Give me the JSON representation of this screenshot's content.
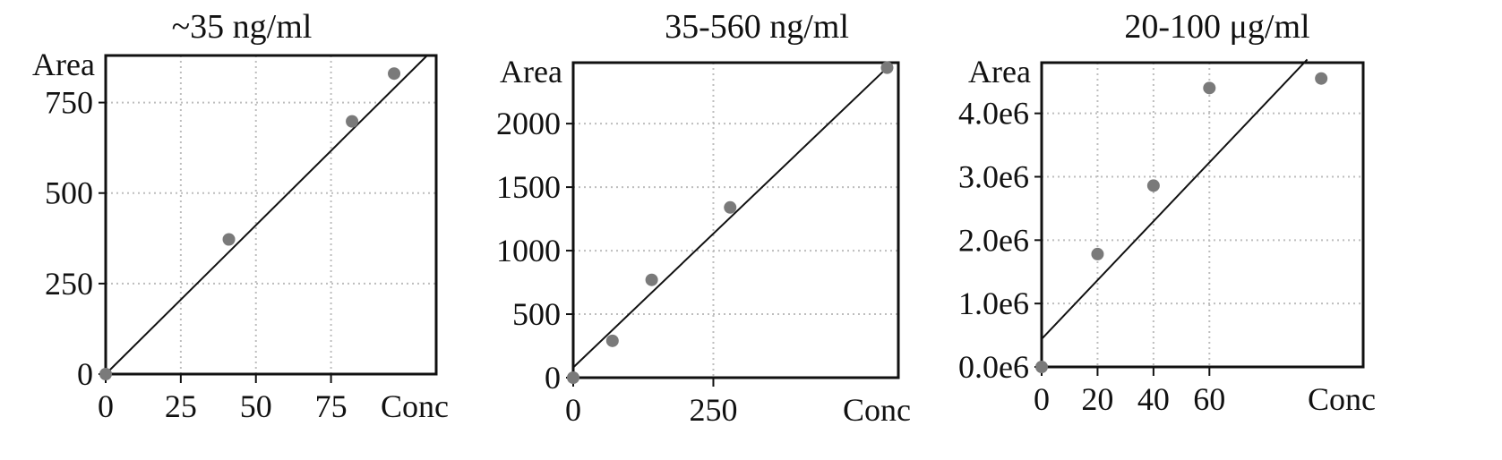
{
  "chart_data": [
    {
      "type": "scatter",
      "title": "~35 ng/ml",
      "xlabel": "Conc",
      "ylabel": "Area",
      "xlim": [
        0,
        110
      ],
      "ylim": [
        0,
        880
      ],
      "xticks": [
        0,
        25,
        50,
        75
      ],
      "yticks": [
        0,
        250,
        500,
        750
      ],
      "xtick_labels": [
        "0",
        "25",
        "50",
        "75"
      ],
      "ytick_labels": [
        "0",
        "250",
        "500",
        "750"
      ],
      "grid": true,
      "legend": "none",
      "points": [
        [
          0,
          0
        ],
        [
          41,
          372
        ],
        [
          82,
          698
        ],
        [
          96,
          830
        ]
      ],
      "fit_line": [
        [
          0,
          0
        ],
        [
          107,
          880
        ]
      ],
      "colors": {
        "points": "#7a7a7a",
        "line": "#111111",
        "grid": "#bdbdbd"
      }
    },
    {
      "type": "scatter",
      "title": "35-560 ng/ml",
      "xlabel": "Conc",
      "ylabel": "Area",
      "xlim": [
        0,
        580
      ],
      "ylim": [
        0,
        2480
      ],
      "xticks": [
        0,
        250
      ],
      "yticks": [
        0,
        500,
        1000,
        1500,
        2000
      ],
      "xtick_labels": [
        "0",
        "250"
      ],
      "ytick_labels": [
        "0",
        "500",
        "1000",
        "1500",
        "2000"
      ],
      "grid": true,
      "legend": "none",
      "points": [
        [
          0,
          0
        ],
        [
          70,
          290
        ],
        [
          140,
          770
        ],
        [
          280,
          1340
        ],
        [
          560,
          2440
        ]
      ],
      "fit_line": [
        [
          0,
          80
        ],
        [
          560,
          2440
        ]
      ],
      "colors": {
        "points": "#7a7a7a",
        "line": "#111111",
        "grid": "#bdbdbd"
      }
    },
    {
      "type": "scatter",
      "title": "20-100 μg/ml",
      "xlabel": "Conc",
      "ylabel": "Area",
      "xlim": [
        0,
        115
      ],
      "ylim": [
        0,
        4800000
      ],
      "xticks": [
        0,
        20,
        40,
        60
      ],
      "yticks": [
        0,
        1000000,
        2000000,
        3000000,
        4000000
      ],
      "xtick_labels": [
        "0",
        "20",
        "40",
        "60"
      ],
      "ytick_labels": [
        "0.0e6",
        "1.0e6",
        "2.0e6",
        "3.0e6",
        "4.0e6"
      ],
      "grid": true,
      "legend": "none",
      "points": [
        [
          0,
          0
        ],
        [
          20,
          1780000
        ],
        [
          40,
          2860000
        ],
        [
          60,
          4400000
        ],
        [
          100,
          4550000
        ]
      ],
      "fit_line": [
        [
          0,
          440000
        ],
        [
          95,
          4850000
        ]
      ],
      "colors": {
        "points": "#7a7a7a",
        "line": "#111111",
        "grid": "#bdbdbd"
      }
    }
  ]
}
